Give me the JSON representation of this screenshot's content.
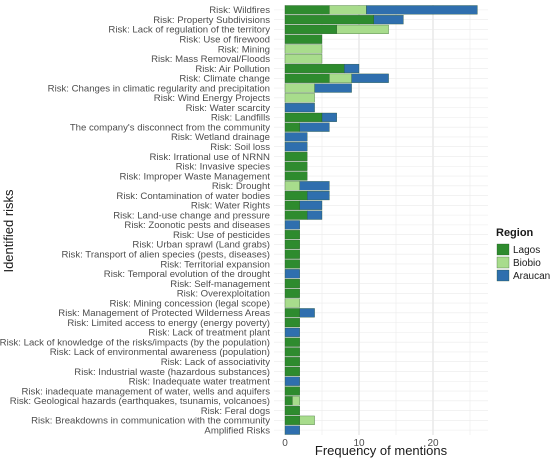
{
  "chart_data": {
    "type": "bar",
    "orientation": "horizontal",
    "stacked": true,
    "xlabel": "Frequency of mentions",
    "ylabel": "Identified risks",
    "xlim": [
      0,
      28
    ],
    "xticks": [
      0,
      10,
      20
    ],
    "grid": true,
    "legend": {
      "title": "Region",
      "placement": "right"
    },
    "categories": [
      "Risk: Wildfires",
      "Risk: Property Subdivisions",
      "Risk: Lack of regulation of the territory",
      "Risk: Use of firewood",
      "Risk: Mining",
      "Risk: Mass Removal/Floods",
      "Risk: Air Pollution",
      "Risk: Climate change",
      "Risk: Changes in climatic regularity and precipitation",
      "Risk: Wind Energy Projects",
      "Risk: Water scarcity",
      "Risk: Landfills",
      "The company's disconnect from the community",
      "Risk: Wetland drainage",
      "Risk: Soil loss",
      "Risk: Irrational use of NRNN",
      "Risk: Invasive species",
      "Risk: Improper Waste Management",
      "Risk: Drought",
      "Risk: Contamination of water bodies",
      "Risk: Water Rights",
      "Risk: Land-use change and pressure",
      "Risk: Zoonotic pests and diseases",
      "Risk: Use of pesticides",
      "Risk: Urban sprawl (Land grabs)",
      "Risk: Transport of alien species (pests, diseases)",
      "Risk: Territorial expansion",
      "Risk: Temporal evolution of the drought",
      "Risk: Self-management",
      "Risk: Overexploitation",
      "Risk: Mining concession (legal scope)",
      "Risk: Management of Protected Wilderness Areas",
      "Risk: Limited access to energy (energy poverty)",
      "Risk: Lack of treatment plant",
      "Risk: Lack of knowledge of the risks/impacts (by the population)",
      "Risk: Lack of environmental awareness (population)",
      "Risk: Lack of associativity",
      "Risk: Industrial waste (hazardous substances)",
      "Risk: Inadequate water treatment",
      "Risk: inadequate management of water, wells and aquifers",
      "Risk: Geological hazards (earthquakes, tsunamis, volcanoes)",
      "Risk: Feral dogs",
      "Risk: Breakdowns in communication with the community",
      "Amplified Risks"
    ],
    "series": [
      {
        "name": "Lagos",
        "color": "#2e8b2e",
        "values": [
          6,
          12,
          7,
          5,
          0,
          0,
          8,
          6,
          0,
          0,
          0,
          5,
          2,
          0,
          0,
          3,
          3,
          3,
          0,
          3,
          2,
          3,
          0,
          2,
          2,
          2,
          2,
          0,
          2,
          2,
          0,
          2,
          2,
          0,
          2,
          2,
          2,
          2,
          0,
          2,
          1,
          2,
          2,
          0
        ]
      },
      {
        "name": "Biobio",
        "color": "#a8dc8c",
        "values": [
          5,
          0,
          7,
          0,
          5,
          5,
          0,
          3,
          4,
          4,
          0,
          0,
          0,
          0,
          0,
          0,
          0,
          0,
          2,
          0,
          0,
          0,
          0,
          0,
          0,
          0,
          0,
          0,
          0,
          0,
          2,
          0,
          0,
          0,
          0,
          0,
          0,
          0,
          0,
          0,
          1,
          0,
          2,
          0
        ]
      },
      {
        "name": "Araucania",
        "color": "#2f6fae",
        "values": [
          15,
          4,
          0,
          0,
          0,
          0,
          2,
          5,
          5,
          0,
          4,
          2,
          4,
          3,
          3,
          0,
          0,
          0,
          4,
          3,
          3,
          2,
          2,
          0,
          0,
          0,
          0,
          2,
          0,
          0,
          0,
          2,
          0,
          2,
          0,
          0,
          0,
          0,
          2,
          0,
          0,
          0,
          0,
          2
        ]
      }
    ]
  }
}
